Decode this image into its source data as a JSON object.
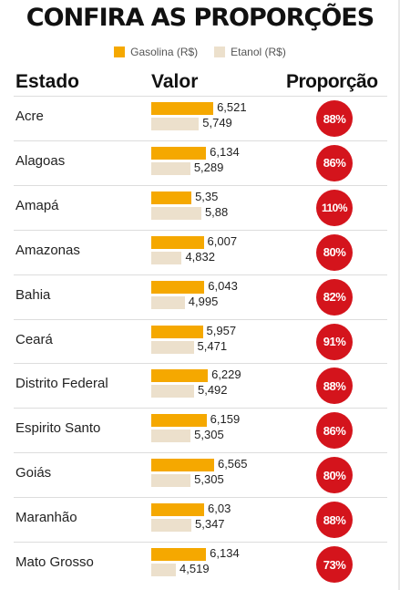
{
  "title": "CONFIRA AS PROPORÇÕES",
  "legend": {
    "gasolina": "Gasolina (R$)",
    "etanol": "Etanol (R$)"
  },
  "headers": {
    "estado": "Estado",
    "valor": "Valor",
    "proporcao": "Proporção"
  },
  "colors": {
    "gasolina": "#f5a800",
    "etanol": "#ece0cc",
    "badge": "#d4141c"
  },
  "chart_data": {
    "type": "bar",
    "title": "CONFIRA AS PROPORÇÕES",
    "xlabel": "",
    "ylabel": "",
    "categories": [
      "Acre",
      "Alagoas",
      "Amapá",
      "Amazonas",
      "Bahia",
      "Ceará",
      "Distrito Federal",
      "Espirito Santo",
      "Goiás",
      "Maranhão",
      "Mato Grosso"
    ],
    "series": [
      {
        "name": "Gasolina (R$)",
        "values": [
          6.521,
          6.134,
          5.35,
          6.007,
          6.043,
          5.957,
          6.229,
          6.159,
          6.565,
          6.03,
          6.134
        ]
      },
      {
        "name": "Etanol (R$)",
        "values": [
          5.749,
          5.289,
          5.88,
          4.832,
          4.995,
          5.471,
          5.492,
          5.305,
          5.305,
          5.347,
          4.519
        ]
      }
    ],
    "value_labels": {
      "gasolina": [
        "6,521",
        "6,134",
        "5,35",
        "6,007",
        "6,043",
        "5,957",
        "6,229",
        "6,159",
        "6,565",
        "6,03",
        "6,134"
      ],
      "etanol": [
        "5,749",
        "5,289",
        "5,88",
        "4,832",
        "4,995",
        "5,471",
        "5,492",
        "5,305",
        "5,305",
        "5,347",
        "4,519"
      ]
    },
    "proporcao": [
      "88%",
      "86%",
      "110%",
      "80%",
      "82%",
      "91%",
      "88%",
      "86%",
      "80%",
      "88%",
      "73%"
    ],
    "legend_position": "top"
  }
}
